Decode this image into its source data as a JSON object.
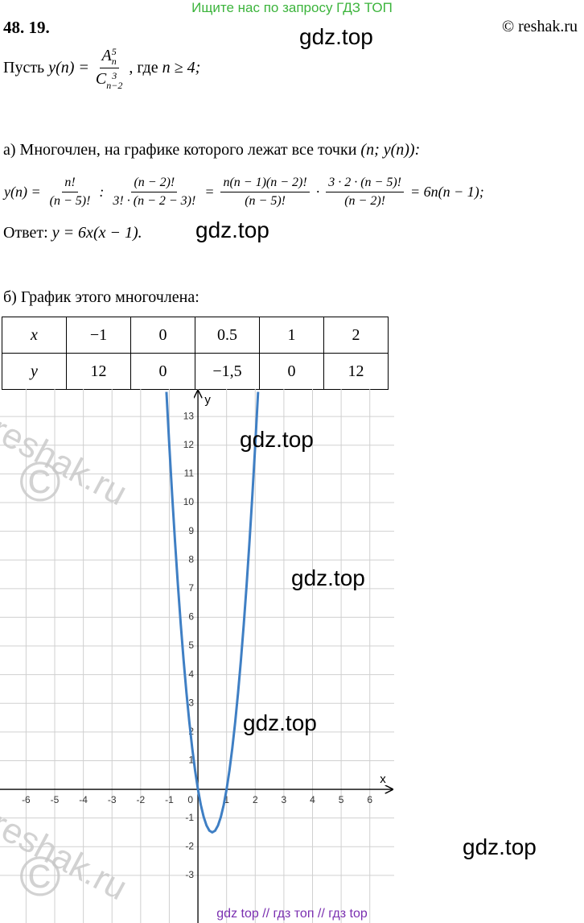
{
  "banner": "Ищите нас по запросу ГДЗ ТОП",
  "header": {
    "number": "48. 19.",
    "copyright": "© reshak.ru"
  },
  "intro": {
    "lead": "Пусть",
    "lhs": "y(n) =",
    "fraction": {
      "num": {
        "base": "A",
        "sup": "5",
        "sub": "n"
      },
      "den": {
        "base": "C",
        "sup": "3",
        "sub": "n−2"
      }
    },
    "tail": ", где",
    "condition": "n ≥ 4;"
  },
  "part_a": {
    "text": "а) Многочлен, на графике которого лежат все точки",
    "point": "(n;  y(n)):",
    "equation": [
      {
        "text": "y(n) ="
      },
      {
        "num": "n!",
        "den": "(n − 5)!"
      },
      {
        "text": ":"
      },
      {
        "num": "(n − 2)!",
        "den": "3! · (n − 2 − 3)!"
      },
      {
        "text": "="
      },
      {
        "num": "n(n − 1)(n − 2)!",
        "den": "(n − 5)!"
      },
      {
        "text": "·"
      },
      {
        "num": "3 · 2 · (n − 5)!",
        "den": "(n − 2)!"
      },
      {
        "text": "= 6n(n − 1);"
      }
    ],
    "answer": {
      "label": "Ответ:",
      "formula": "y = 6x(x − 1)."
    }
  },
  "part_b": {
    "text": "б) График этого многочлена:"
  },
  "table": {
    "rows": [
      [
        "x",
        "−1",
        "0",
        "0.5",
        "1",
        "2"
      ],
      [
        "y",
        "12",
        "0",
        "−1,5",
        "0",
        "12"
      ]
    ]
  },
  "graph": {
    "type": "line",
    "x": [
      -1.1,
      -1.0,
      -0.9,
      -0.8,
      -0.7,
      -0.6,
      -0.5,
      -0.4,
      -0.3,
      -0.2,
      -0.1,
      0,
      0.1,
      0.2,
      0.3,
      0.4,
      0.5,
      0.6,
      0.7,
      0.8,
      0.9,
      1.0,
      1.1,
      1.2,
      1.3,
      1.4,
      1.5,
      1.6,
      1.7,
      1.8,
      1.9,
      2.0,
      2.1
    ],
    "values": [
      13.86,
      12,
      10.26,
      8.64,
      7.14,
      5.76,
      4.5,
      3.36,
      2.34,
      1.44,
      0.66,
      0,
      -0.54,
      -0.96,
      -1.26,
      -1.44,
      -1.5,
      -1.44,
      -1.26,
      -0.96,
      -0.54,
      0,
      0.66,
      1.44,
      2.34,
      3.36,
      4.5,
      5.76,
      7.14,
      8.64,
      10.26,
      12,
      13.86
    ],
    "color": "#3f7fc4",
    "xlim": [
      -6.91,
      6.85
    ],
    "ylim": [
      -4.66,
      13.96
    ],
    "xticks": [
      -6,
      -5,
      -4,
      -3,
      -2,
      -1,
      0,
      1,
      2,
      3,
      4,
      5,
      6
    ],
    "yticks": [
      -3,
      -2,
      -1,
      1,
      2,
      3,
      4,
      5,
      6,
      7,
      8,
      9,
      10,
      11,
      12,
      13
    ],
    "x_label": "x",
    "y_label": "y",
    "grid": true
  },
  "watermarks": [
    "gdz.top",
    "gdz.top",
    "gdz.top",
    "gdz.top",
    "gdz.top",
    "gdz.top"
  ],
  "reshak_marks": [
    {
      "text": "reshak.ru",
      "symbol": "©"
    },
    {
      "text": "reshak.ru",
      "symbol": "©"
    }
  ],
  "footer": "gdz top  //  гдз топ  //  гдз top"
}
